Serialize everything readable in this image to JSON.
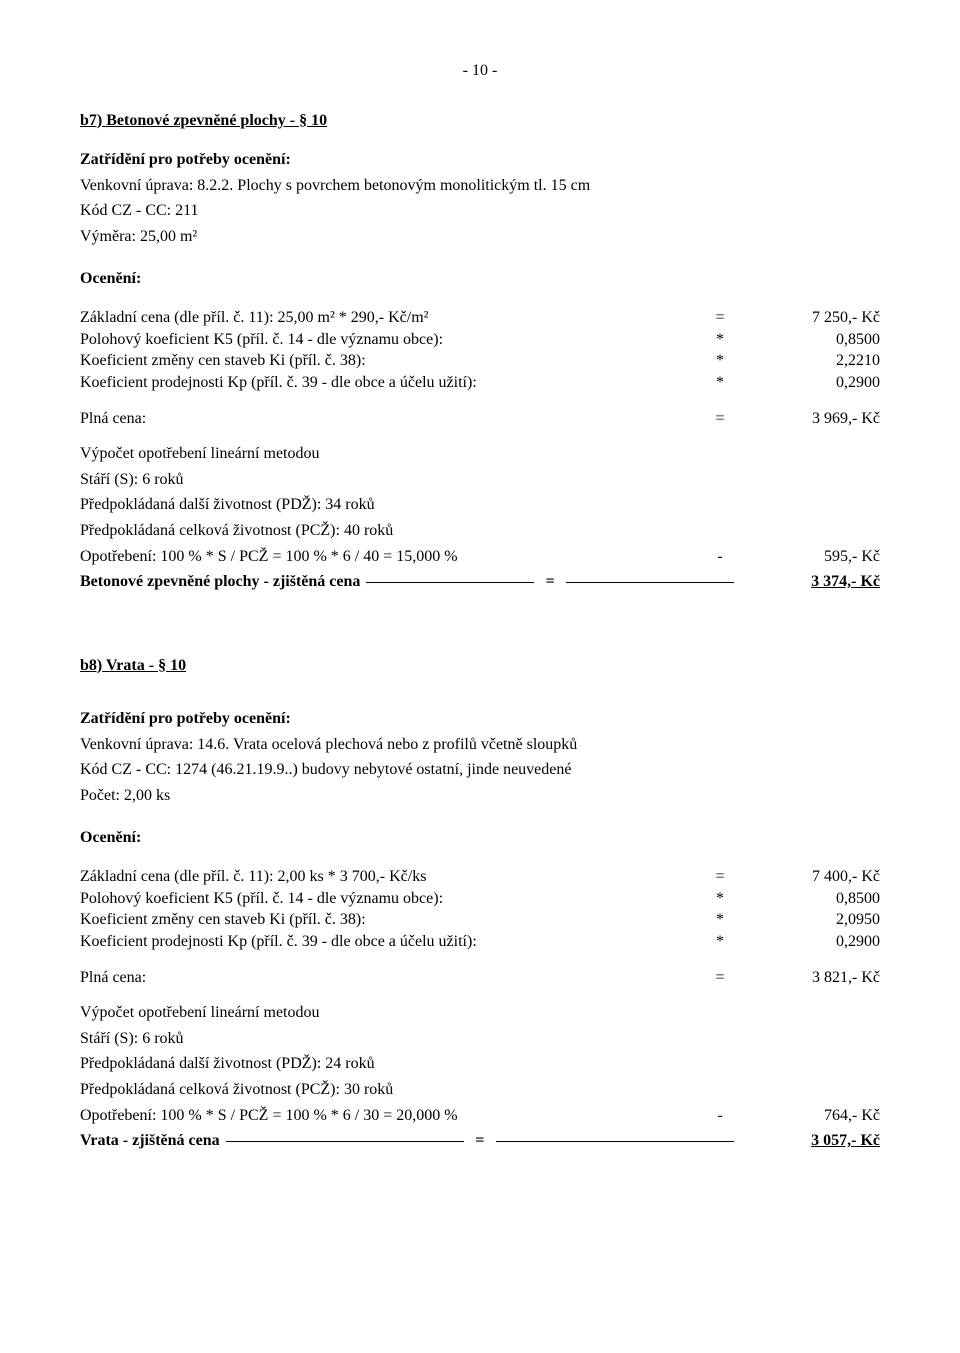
{
  "pageNumber": "- 10 -",
  "b7": {
    "title": "b7) Betonové zpevněné plochy - § 10",
    "classHeading": "Zatřídění pro potřeby ocenění:",
    "line1": "Venkovní úprava: 8.2.2. Plochy s povrchem betonovým monolitickým tl. 15 cm",
    "line2": "Kód CZ - CC: 211",
    "line3": "Výměra: 25,00 m²",
    "ocenHeading": "Ocenění:",
    "rows": [
      {
        "label": "Základní cena (dle příl. č. 11):        25,00 m²  *  290,- Kč/m²",
        "sym": "=",
        "val": "7 250,- Kč"
      },
      {
        "label": "Polohový koeficient K5 (příl. č. 14 - dle významu obce):",
        "sym": "*",
        "val": "0,8500"
      },
      {
        "label": "Koeficient změny cen staveb Ki (příl. č. 38):",
        "sym": "*",
        "val": "2,2210"
      },
      {
        "label": "Koeficient prodejnosti Kp (příl. č. 39 - dle obce a účelu užití):",
        "sym": "*",
        "val": "0,2900"
      }
    ],
    "plna": {
      "label": "Plná cena:",
      "sym": "=",
      "val": "3 969,- Kč"
    },
    "wearHeading": "Výpočet opotřebení lineární metodou",
    "wear1": "Stáří (S): 6 roků",
    "wear2": "Předpokládaná další životnost (PDŽ): 34 roků",
    "wear3": "Předpokládaná celková životnost (PCŽ): 40 roků",
    "wearRow": {
      "label": "Opotřebení: 100 % * S / PCŽ = 100 % * 6 / 40 = 15,000 %",
      "sym": "-",
      "val": "595,- Kč"
    },
    "final": {
      "label": "Betonové zpevněné plochy - zjištěná cena",
      "sym": "=",
      "val": "3 374,- Kč"
    }
  },
  "b8": {
    "title": "b8) Vrata - § 10",
    "classHeading": "Zatřídění pro potřeby ocenění:",
    "line1": "Venkovní úprava: 14.6. Vrata ocelová plechová nebo z profilů včetně sloupků",
    "line2": "Kód CZ - CC: 1274 (46.21.19.9..)  budovy nebytové ostatní, jinde neuvedené",
    "line3": "Počet:  2,00 ks",
    "ocenHeading": "Ocenění:",
    "rows": [
      {
        "label": "Základní cena (dle příl. č. 11):        2,00 ks  *  3 700,- Kč/ks",
        "sym": "=",
        "val": "7 400,- Kč"
      },
      {
        "label": "Polohový koeficient K5 (příl. č. 14 - dle významu obce):",
        "sym": "*",
        "val": "0,8500"
      },
      {
        "label": "Koeficient změny cen staveb Ki (příl. č. 38):",
        "sym": "*",
        "val": "2,0950"
      },
      {
        "label": "Koeficient prodejnosti Kp (příl. č. 39 - dle obce a účelu užití):",
        "sym": "*",
        "val": "0,2900"
      }
    ],
    "plna": {
      "label": "Plná cena:",
      "sym": "=",
      "val": "3 821,- Kč"
    },
    "wearHeading": "Výpočet opotřebení lineární metodou",
    "wear1": "Stáří (S): 6 roků",
    "wear2": "Předpokládaná další životnost (PDŽ): 24 roků",
    "wear3": "Předpokládaná celková životnost (PCŽ): 30 roků",
    "wearRow": {
      "label": "Opotřebení: 100 % * S / PCŽ = 100 % * 6 / 30 = 20,000 %",
      "sym": "-",
      "val": "764,- Kč"
    },
    "final": {
      "label": "Vrata - zjištěná cena",
      "sym": "=",
      "val": "3 057,- Kč"
    }
  }
}
